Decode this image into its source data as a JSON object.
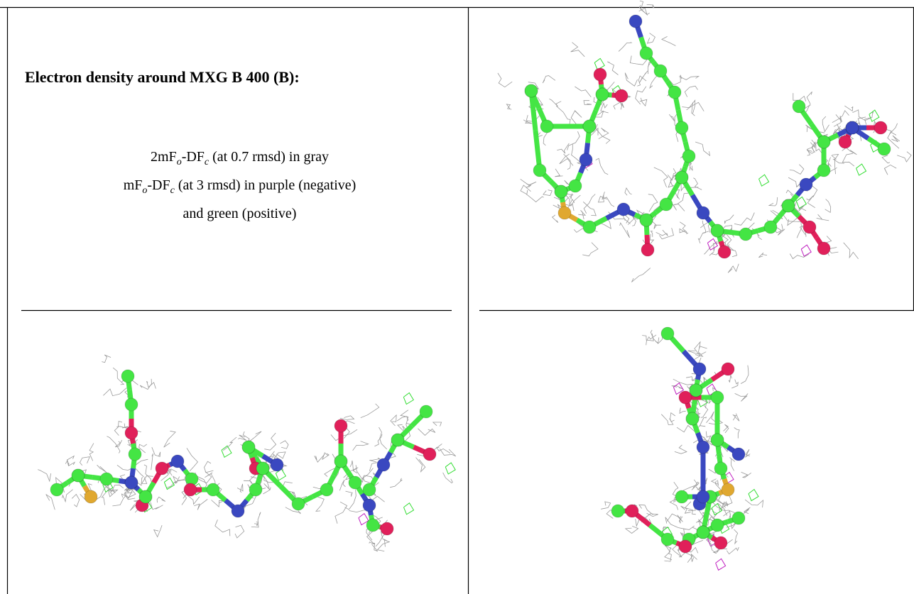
{
  "cell_text": {
    "title": "Electron density around MXG B 400 (B):",
    "lines": [
      {
        "parts": [
          "2mF",
          "o",
          "-DF",
          "c",
          " (at 0.7 rmsd) in gray"
        ]
      },
      {
        "parts": [
          "mF",
          "o",
          "-DF",
          "c",
          " (at 3 rmsd) in purple (negative)"
        ]
      },
      {
        "parts": [
          "and green (positive)"
        ]
      }
    ]
  }
}
